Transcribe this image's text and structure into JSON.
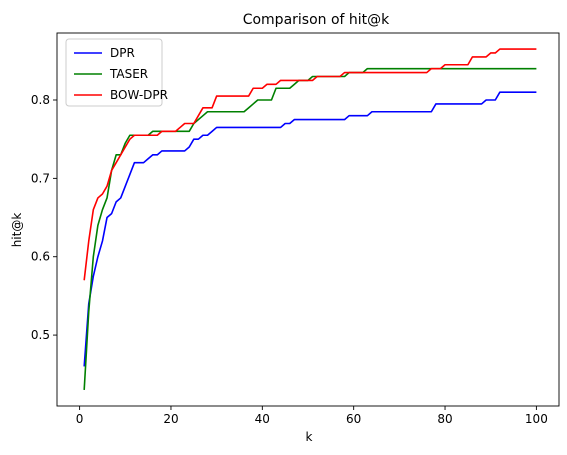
{
  "chart_data": {
    "type": "line",
    "title": "Comparison of hit@k",
    "xlabel": "k",
    "ylabel": "hit@k",
    "xlim": [
      -4.95,
      104.95
    ],
    "ylim": [
      0.4095,
      0.8855
    ],
    "xticks": [
      0,
      20,
      40,
      60,
      80,
      100
    ],
    "yticks": [
      0.5,
      0.6,
      0.7,
      0.8
    ],
    "ytick_labels": [
      "0.5",
      "0.6",
      "0.7",
      "0.8"
    ],
    "grid": false,
    "legend": "top-left",
    "series": [
      {
        "name": "DPR",
        "color": "#0000ff",
        "points": [
          [
            1,
            0.46
          ],
          [
            2,
            0.54
          ],
          [
            3,
            0.575
          ],
          [
            4,
            0.6
          ],
          [
            5,
            0.62
          ],
          [
            6,
            0.65
          ],
          [
            7,
            0.655
          ],
          [
            8,
            0.67
          ],
          [
            9,
            0.675
          ],
          [
            10,
            0.69
          ],
          [
            11,
            0.705
          ],
          [
            12,
            0.72
          ],
          [
            14,
            0.72
          ],
          [
            15,
            0.725
          ],
          [
            16,
            0.73
          ],
          [
            17,
            0.73
          ],
          [
            18,
            0.735
          ],
          [
            23,
            0.735
          ],
          [
            24,
            0.74
          ],
          [
            25,
            0.75
          ],
          [
            26,
            0.75
          ],
          [
            27,
            0.755
          ],
          [
            28,
            0.755
          ],
          [
            29,
            0.76
          ],
          [
            30,
            0.765
          ],
          [
            44,
            0.765
          ],
          [
            45,
            0.77
          ],
          [
            46,
            0.77
          ],
          [
            47,
            0.775
          ],
          [
            58,
            0.775
          ],
          [
            59,
            0.78
          ],
          [
            63,
            0.78
          ],
          [
            64,
            0.785
          ],
          [
            77,
            0.785
          ],
          [
            78,
            0.795
          ],
          [
            88,
            0.795
          ],
          [
            89,
            0.8
          ],
          [
            91,
            0.8
          ],
          [
            92,
            0.81
          ],
          [
            100,
            0.81
          ]
        ]
      },
      {
        "name": "TASER",
        "color": "#008000",
        "points": [
          [
            1,
            0.43
          ],
          [
            2,
            0.53
          ],
          [
            3,
            0.6
          ],
          [
            4,
            0.64
          ],
          [
            5,
            0.66
          ],
          [
            6,
            0.675
          ],
          [
            7,
            0.71
          ],
          [
            8,
            0.73
          ],
          [
            9,
            0.73
          ],
          [
            10,
            0.745
          ],
          [
            11,
            0.755
          ],
          [
            15,
            0.755
          ],
          [
            16,
            0.76
          ],
          [
            24,
            0.76
          ],
          [
            25,
            0.77
          ],
          [
            27,
            0.78
          ],
          [
            28,
            0.785
          ],
          [
            36,
            0.785
          ],
          [
            37,
            0.79
          ],
          [
            38,
            0.795
          ],
          [
            39,
            0.8
          ],
          [
            42,
            0.8
          ],
          [
            43,
            0.815
          ],
          [
            46,
            0.815
          ],
          [
            47,
            0.82
          ],
          [
            48,
            0.825
          ],
          [
            50,
            0.825
          ],
          [
            51,
            0.83
          ],
          [
            58,
            0.83
          ],
          [
            59,
            0.835
          ],
          [
            62,
            0.835
          ],
          [
            63,
            0.84
          ],
          [
            100,
            0.84
          ]
        ]
      },
      {
        "name": "BOW-DPR",
        "color": "#ff0000",
        "points": [
          [
            1,
            0.57
          ],
          [
            2,
            0.62
          ],
          [
            3,
            0.66
          ],
          [
            4,
            0.675
          ],
          [
            5,
            0.68
          ],
          [
            6,
            0.69
          ],
          [
            7,
            0.71
          ],
          [
            8,
            0.72
          ],
          [
            9,
            0.73
          ],
          [
            10,
            0.74
          ],
          [
            11,
            0.75
          ],
          [
            12,
            0.755
          ],
          [
            17,
            0.755
          ],
          [
            18,
            0.76
          ],
          [
            21,
            0.76
          ],
          [
            22,
            0.765
          ],
          [
            23,
            0.77
          ],
          [
            25,
            0.77
          ],
          [
            26,
            0.78
          ],
          [
            27,
            0.79
          ],
          [
            29,
            0.79
          ],
          [
            30,
            0.805
          ],
          [
            37,
            0.805
          ],
          [
            38,
            0.815
          ],
          [
            40,
            0.815
          ],
          [
            41,
            0.82
          ],
          [
            43,
            0.82
          ],
          [
            44,
            0.825
          ],
          [
            51,
            0.825
          ],
          [
            52,
            0.83
          ],
          [
            57,
            0.83
          ],
          [
            58,
            0.835
          ],
          [
            76,
            0.835
          ],
          [
            77,
            0.84
          ],
          [
            79,
            0.84
          ],
          [
            80,
            0.845
          ],
          [
            85,
            0.845
          ],
          [
            86,
            0.855
          ],
          [
            89,
            0.855
          ],
          [
            90,
            0.86
          ],
          [
            91,
            0.86
          ],
          [
            92,
            0.865
          ],
          [
            100,
            0.865
          ]
        ]
      }
    ]
  }
}
